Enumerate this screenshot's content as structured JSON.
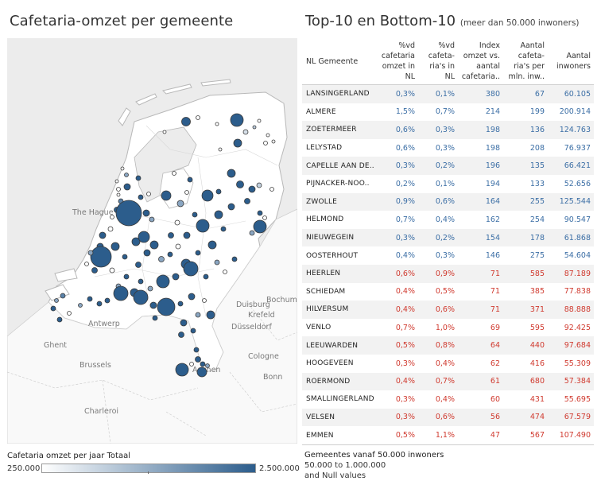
{
  "left_title": "Cafetaria-omzet per gemeente",
  "right_title": "Top-10 en Bottom-10",
  "right_subtitle": "(meer dan 50.000 inwoners)",
  "map": {
    "cities": [
      {
        "label": "The Hague"
      },
      {
        "label": "Antwerp"
      },
      {
        "label": "Ghent"
      },
      {
        "label": "Brussels"
      },
      {
        "label": "Charleroi"
      },
      {
        "label": "Duisburg"
      },
      {
        "label": "Bochum"
      },
      {
        "label": "Krefeld"
      },
      {
        "label": "Düsseldorf"
      },
      {
        "label": "Cologne"
      },
      {
        "label": "Bonn"
      },
      {
        "label": "Aachen"
      }
    ]
  },
  "legend": {
    "title": "Cafetaria omzet per jaar Totaal",
    "min": "250.000",
    "max": "2.500.000",
    "color_low": "#ffffff",
    "color_high": "#2c5d8c"
  },
  "table": {
    "headers": {
      "name": "NL Gemeente",
      "omzet": "%vd cafetaria omzet in NL",
      "cafetarias": "%vd cafeta-ria's in NL",
      "index": "Index omzet vs. aantal cafetaria..",
      "per_mln": "Aantal cafeta-ria's per mln. inw..",
      "inwoners": "Aantal inwoners"
    },
    "top_color": "#3b6ea5",
    "bottom_color": "#d03a2f",
    "rows": [
      {
        "group": "top",
        "name": "LANSINGERLAND",
        "omzet": "0,3%",
        "cafetarias": "0,1%",
        "index": "380",
        "per_mln": "67",
        "inwoners": "60.105"
      },
      {
        "group": "top",
        "name": "ALMERE",
        "omzet": "1,5%",
        "cafetarias": "0,7%",
        "index": "214",
        "per_mln": "199",
        "inwoners": "200.914"
      },
      {
        "group": "top",
        "name": "ZOETERMEER",
        "omzet": "0,6%",
        "cafetarias": "0,3%",
        "index": "198",
        "per_mln": "136",
        "inwoners": "124.763"
      },
      {
        "group": "top",
        "name": "LELYSTAD",
        "omzet": "0,6%",
        "cafetarias": "0,3%",
        "index": "198",
        "per_mln": "208",
        "inwoners": "76.937"
      },
      {
        "group": "top",
        "name": "CAPELLE AAN DE..",
        "omzet": "0,3%",
        "cafetarias": "0,2%",
        "index": "196",
        "per_mln": "135",
        "inwoners": "66.421"
      },
      {
        "group": "top",
        "name": "PIJNACKER-NOO..",
        "omzet": "0,2%",
        "cafetarias": "0,1%",
        "index": "194",
        "per_mln": "133",
        "inwoners": "52.656"
      },
      {
        "group": "top",
        "name": "ZWOLLE",
        "omzet": "0,9%",
        "cafetarias": "0,6%",
        "index": "164",
        "per_mln": "255",
        "inwoners": "125.544"
      },
      {
        "group": "top",
        "name": "HELMOND",
        "omzet": "0,7%",
        "cafetarias": "0,4%",
        "index": "162",
        "per_mln": "254",
        "inwoners": "90.547"
      },
      {
        "group": "top",
        "name": "NIEUWEGEIN",
        "omzet": "0,3%",
        "cafetarias": "0,2%",
        "index": "154",
        "per_mln": "178",
        "inwoners": "61.868"
      },
      {
        "group": "top",
        "name": "OOSTERHOUT",
        "omzet": "0,4%",
        "cafetarias": "0,3%",
        "index": "146",
        "per_mln": "275",
        "inwoners": "54.604"
      },
      {
        "group": "bottom",
        "name": "HEERLEN",
        "omzet": "0,6%",
        "cafetarias": "0,9%",
        "index": "71",
        "per_mln": "585",
        "inwoners": "87.189"
      },
      {
        "group": "bottom",
        "name": "SCHIEDAM",
        "omzet": "0,4%",
        "cafetarias": "0,5%",
        "index": "71",
        "per_mln": "385",
        "inwoners": "77.838"
      },
      {
        "group": "bottom",
        "name": "HILVERSUM",
        "omzet": "0,4%",
        "cafetarias": "0,6%",
        "index": "71",
        "per_mln": "371",
        "inwoners": "88.888"
      },
      {
        "group": "bottom",
        "name": "VENLO",
        "omzet": "0,7%",
        "cafetarias": "1,0%",
        "index": "69",
        "per_mln": "595",
        "inwoners": "92.425"
      },
      {
        "group": "bottom",
        "name": "LEEUWARDEN",
        "omzet": "0,5%",
        "cafetarias": "0,8%",
        "index": "64",
        "per_mln": "440",
        "inwoners": "97.684"
      },
      {
        "group": "bottom",
        "name": "HOOGEVEEN",
        "omzet": "0,3%",
        "cafetarias": "0,4%",
        "index": "62",
        "per_mln": "416",
        "inwoners": "55.309"
      },
      {
        "group": "bottom",
        "name": "ROERMOND",
        "omzet": "0,4%",
        "cafetarias": "0,7%",
        "index": "61",
        "per_mln": "680",
        "inwoners": "57.384"
      },
      {
        "group": "bottom",
        "name": "SMALLINGERLAND",
        "omzet": "0,3%",
        "cafetarias": "0,4%",
        "index": "60",
        "per_mln": "431",
        "inwoners": "55.695"
      },
      {
        "group": "bottom",
        "name": "VELSEN",
        "omzet": "0,3%",
        "cafetarias": "0,6%",
        "index": "56",
        "per_mln": "474",
        "inwoners": "67.579"
      },
      {
        "group": "bottom",
        "name": "EMMEN",
        "omzet": "0,5%",
        "cafetarias": "1,1%",
        "index": "47",
        "per_mln": "567",
        "inwoners": "107.490"
      }
    ]
  },
  "filter": {
    "title": "Gemeentes vanaf 50.000 inwoners",
    "range": "50.000 to 1.000.000",
    "null_note": "and Null values"
  }
}
